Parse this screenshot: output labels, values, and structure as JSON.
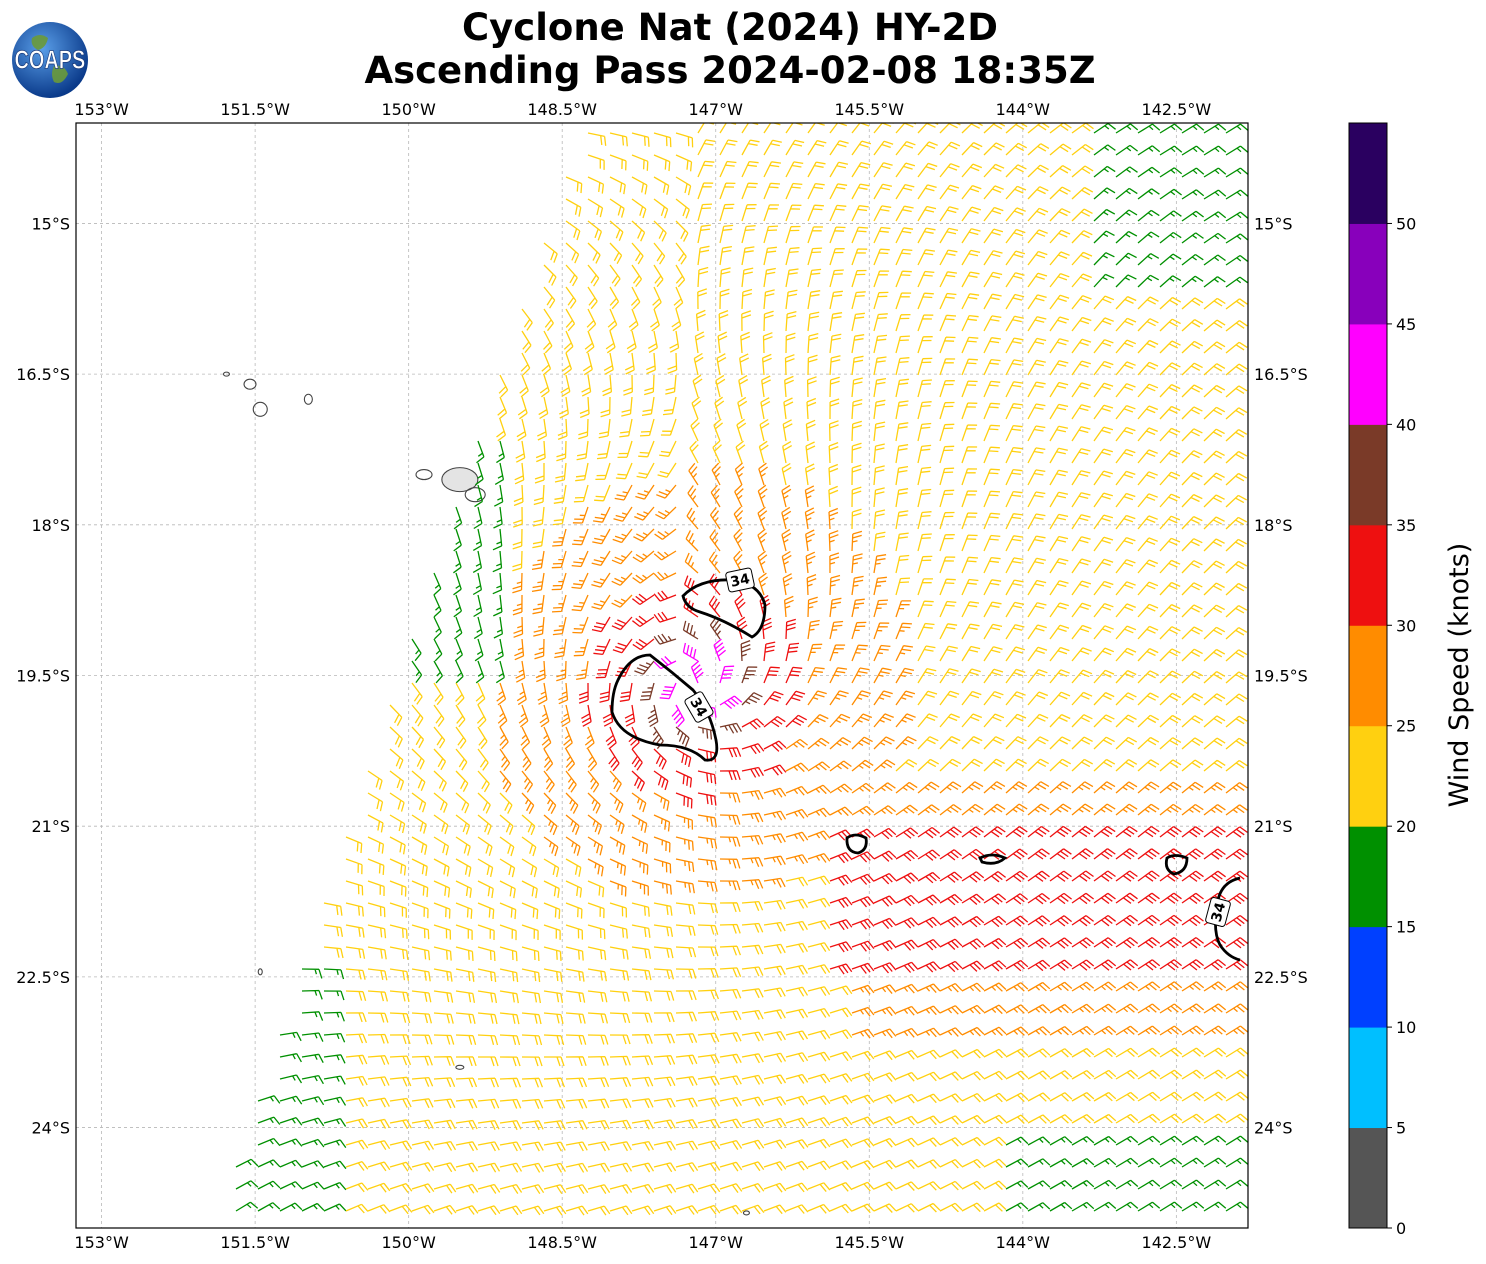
{
  "title": {
    "line1": "Cyclone Nat (2024) HY-2D",
    "line2": "Ascending Pass 2024-02-08 18:35Z"
  },
  "logo": {
    "text": "COAPS",
    "icon": "globe-logo-icon"
  },
  "map": {
    "lon_range": [
      -153.25,
      -141.8
    ],
    "lat_range": [
      -25.0,
      -14.0
    ],
    "x_ticks": [
      "153°W",
      "151.5°W",
      "150°W",
      "148.5°W",
      "147°W",
      "145.5°W",
      "144°W",
      "142.5°W"
    ],
    "x_tick_values": [
      -153,
      -151.5,
      -150,
      -148.5,
      -147,
      -145.5,
      -144,
      -142.5
    ],
    "y_ticks": [
      "15°S",
      "16.5°S",
      "18°S",
      "19.5°S",
      "21°S",
      "22.5°S",
      "24°S"
    ],
    "y_tick_values": [
      -15,
      -16.5,
      -18,
      -19.5,
      -21,
      -22.5,
      -24
    ],
    "grid": true,
    "contour_label": "34",
    "cyclone_center": [
      -147.2,
      -19.6
    ]
  },
  "colorbar": {
    "label": "Wind Speed (knots)",
    "ticks": [
      "0",
      "5",
      "10",
      "15",
      "20",
      "25",
      "30",
      "35",
      "40",
      "45",
      "50"
    ],
    "bins": [
      {
        "min": 0,
        "max": 5,
        "color": "#555555"
      },
      {
        "min": 5,
        "max": 10,
        "color": "#00bfff"
      },
      {
        "min": 10,
        "max": 15,
        "color": "#0040ff"
      },
      {
        "min": 15,
        "max": 20,
        "color": "#009000"
      },
      {
        "min": 20,
        "max": 25,
        "color": "#ffd010"
      },
      {
        "min": 25,
        "max": 30,
        "color": "#ff8c00"
      },
      {
        "min": 30,
        "max": 35,
        "color": "#ee1010"
      },
      {
        "min": 35,
        "max": 40,
        "color": "#7a3a28"
      },
      {
        "min": 40,
        "max": 45,
        "color": "#ff00ff"
      },
      {
        "min": 45,
        "max": 50,
        "color": "#8800bb"
      },
      {
        "min": 50,
        "max": 55,
        "color": "#2a0060"
      }
    ]
  }
}
